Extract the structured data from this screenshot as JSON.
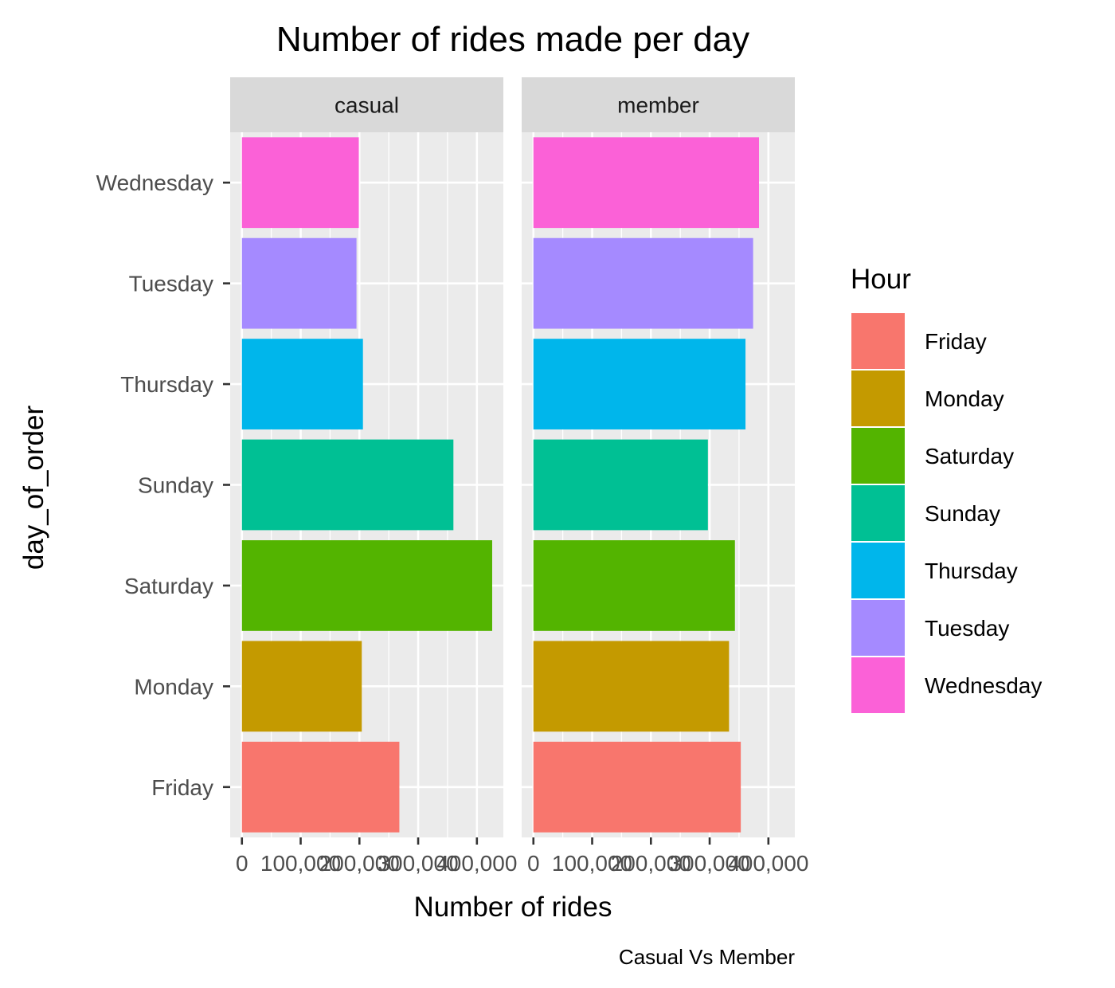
{
  "chart_data": {
    "type": "bar",
    "orientation": "horizontal",
    "title": "Number of rides made per day",
    "xlabel": "Number of rides",
    "ylabel": "day_of_order",
    "caption": "Casual Vs Member",
    "legend": {
      "title": "Hour",
      "position": "right",
      "entries": [
        {
          "label": "Friday",
          "color": "#F8766D"
        },
        {
          "label": "Monday",
          "color": "#C49A00"
        },
        {
          "label": "Saturday",
          "color": "#53B400"
        },
        {
          "label": "Sunday",
          "color": "#00C094"
        },
        {
          "label": "Thursday",
          "color": "#00B6EB"
        },
        {
          "label": "Tuesday",
          "color": "#A58AFF"
        },
        {
          "label": "Wednesday",
          "color": "#FB61D7"
        }
      ]
    },
    "categories": [
      "Friday",
      "Monday",
      "Saturday",
      "Sunday",
      "Thursday",
      "Tuesday",
      "Wednesday"
    ],
    "xlim": [
      -20000,
      445000
    ],
    "x_ticks": [
      0,
      100000,
      200000,
      300000,
      400000
    ],
    "x_tick_labels": [
      "0",
      "100,000",
      "200,000",
      "300,000",
      "400,000"
    ],
    "grid": true,
    "panels": [
      {
        "name": "casual",
        "values": [
          268000,
          204000,
          426000,
          360000,
          206000,
          195000,
          199000
        ]
      },
      {
        "name": "member",
        "values": [
          353000,
          333000,
          343000,
          297000,
          361000,
          374000,
          384000
        ]
      }
    ]
  }
}
